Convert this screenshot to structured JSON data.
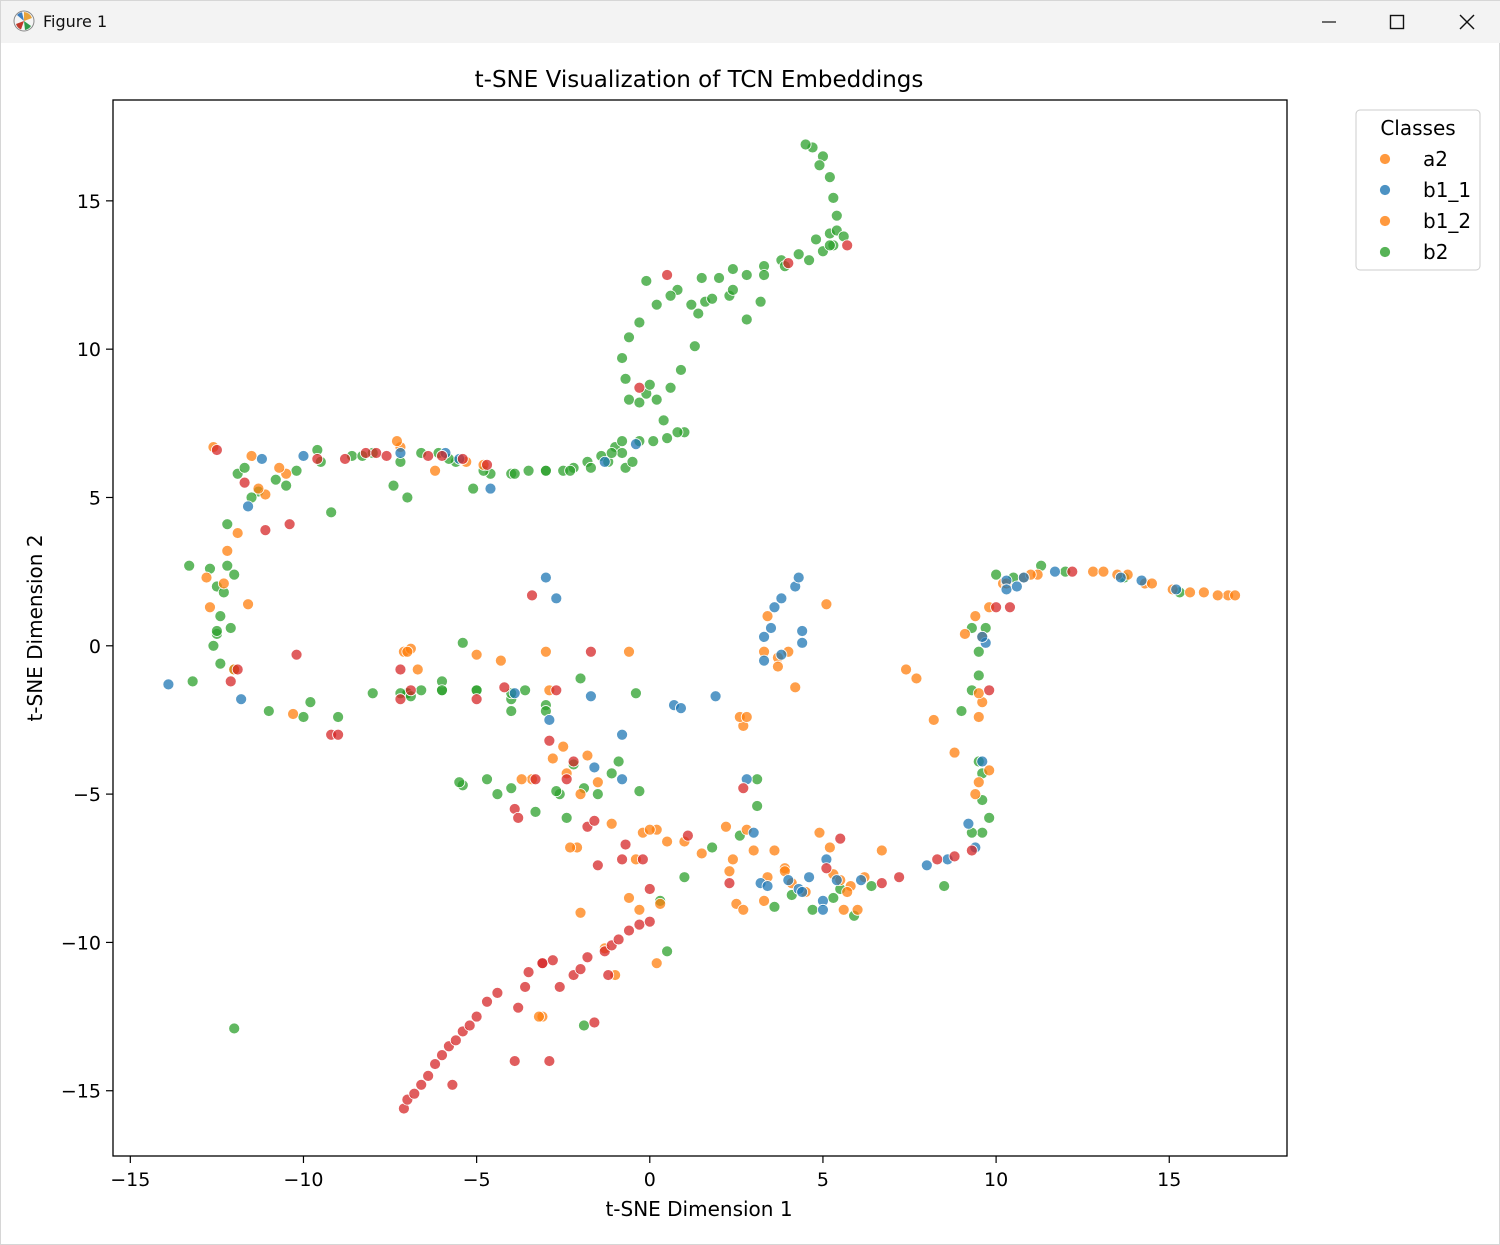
{
  "window": {
    "title": "Figure 1",
    "icons": {
      "app": "matplotlib-icon",
      "minimize": "minimize-icon",
      "maximize": "maximize-icon",
      "close": "close-icon"
    }
  },
  "chart_data": {
    "type": "scatter",
    "title": "t-SNE Visualization of TCN Embeddings",
    "xlabel": "t-SNE Dimension 1",
    "ylabel": "t-SNE Dimension 2",
    "xlim": [
      -15.5,
      18.4
    ],
    "ylim": [
      -17.2,
      18.4
    ],
    "xticks": [
      -15,
      -10,
      -5,
      0,
      5,
      10,
      15
    ],
    "xtick_labels": [
      "−15",
      "−10",
      "−5",
      "0",
      "5",
      "10",
      "15"
    ],
    "yticks": [
      -15,
      -10,
      -5,
      0,
      5,
      10,
      15
    ],
    "ytick_labels": [
      "−15",
      "−10",
      "−5",
      "0",
      "5",
      "10",
      "15"
    ],
    "grid": false,
    "legend": {
      "title": "Classes",
      "placement": "outside-top-right"
    },
    "series": [
      {
        "name": "a2",
        "color": "#ff7f0e",
        "x": [
          -12.8,
          -12.2,
          -11.6,
          -11.1,
          -10.5,
          -7.2,
          -7.1,
          -6.9,
          -6.7,
          -5.3,
          -4.3,
          -3.4,
          -2.8,
          -2.1,
          -1.8,
          -1.1,
          -0.3,
          0.3,
          1.0,
          1.5,
          2.2,
          2.7,
          3.0,
          3.4,
          3.9,
          4.1,
          4.9,
          5.3,
          5.6,
          6.2,
          6.7,
          7.4,
          7.7,
          8.2,
          8.8,
          9.1,
          9.6,
          10.2,
          11.2,
          12.8,
          13.5,
          14.3,
          15.1,
          16.0,
          16.7,
          9.5,
          9.4,
          9.6,
          3.7,
          4.0,
          -0.6,
          -2.4,
          0.2,
          2.5,
          5.1,
          -12.0,
          -11.5,
          10.8,
          2.6,
          -3.1
        ],
        "y": [
          2.3,
          3.2,
          1.4,
          5.1,
          5.8,
          6.7,
          -0.2,
          -0.1,
          -0.8,
          6.2,
          -0.5,
          -4.5,
          -3.8,
          -6.8,
          -3.7,
          -6.0,
          -8.9,
          -8.7,
          -6.6,
          -7.0,
          -6.1,
          -2.7,
          -6.9,
          -7.8,
          -7.5,
          -8.0,
          -6.3,
          -7.7,
          -8.9,
          -7.8,
          -6.9,
          -0.8,
          -1.1,
          -2.5,
          -3.6,
          0.4,
          0.3,
          2.1,
          2.4,
          2.5,
          2.4,
          2.1,
          1.9,
          1.8,
          1.7,
          -4.6,
          -5.0,
          -1.9,
          -0.4,
          -0.2,
          -0.2,
          -4.3,
          -6.2,
          -8.7,
          1.4,
          -0.8,
          6.4,
          2.3,
          -2.4,
          -12.5
        ]
      },
      {
        "name": "b1_1",
        "color": "#1f77b4",
        "x": [
          -13.9,
          -11.8,
          -11.6,
          -11.2,
          -10.0,
          -7.2,
          -5.5,
          -4.6,
          -3.9,
          -3.0,
          -2.9,
          -2.7,
          -1.7,
          -1.6,
          -0.8,
          -0.8,
          0.7,
          0.9,
          1.9,
          3.0,
          3.2,
          3.4,
          4.0,
          4.3,
          4.4,
          4.2,
          4.3,
          3.8,
          3.6,
          3.3,
          3.3,
          3.8,
          3.5,
          4.4,
          5.0,
          5.1,
          5.4,
          6.1,
          8.0,
          8.6,
          9.2,
          9.4,
          9.6,
          10.3,
          10.8,
          11.7,
          13.6,
          14.2,
          15.2,
          -5.9,
          -1.3,
          -0.4,
          2.8,
          4.6,
          9.7,
          10.3,
          10.6,
          5.0,
          4.4,
          9.6
        ],
        "y": [
          -1.3,
          -1.8,
          4.7,
          6.3,
          6.4,
          6.5,
          6.3,
          5.3,
          -1.6,
          2.3,
          -2.5,
          1.6,
          -1.7,
          -4.1,
          -3.0,
          -4.5,
          -2.0,
          -2.1,
          -1.7,
          -6.3,
          -8.0,
          -8.1,
          -7.9,
          -8.2,
          0.1,
          2.0,
          2.3,
          -0.3,
          1.3,
          -0.5,
          0.3,
          1.6,
          0.6,
          -8.3,
          -8.6,
          -7.2,
          -7.9,
          -7.9,
          -7.4,
          -7.2,
          -6.0,
          -6.8,
          -3.9,
          2.2,
          2.3,
          2.5,
          2.3,
          2.2,
          1.9,
          6.5,
          6.2,
          6.8,
          -4.5,
          -7.8,
          0.1,
          1.9,
          2.0,
          -8.9,
          0.5,
          0.3
        ]
      },
      {
        "name": "b1_2",
        "color": "#ff7f0e",
        "x": [
          -12.6,
          -12.3,
          -11.9,
          -11.3,
          -10.7,
          -10.3,
          -7.3,
          -7.0,
          -5.0,
          -4.8,
          -3.7,
          -3.2,
          -2.5,
          -2.3,
          -2.0,
          -1.5,
          -1.3,
          -1.0,
          -0.4,
          -0.2,
          0.5,
          2.3,
          2.4,
          2.7,
          2.8,
          3.3,
          3.6,
          3.9,
          4.5,
          5.5,
          6.0,
          9.4,
          9.8,
          10.3,
          11.0,
          13.1,
          13.8,
          14.5,
          15.6,
          16.4,
          16.9,
          9.5,
          9.5,
          9.8,
          0.0,
          -0.6,
          -2.9,
          3.4,
          5.8,
          -2.0,
          -6.2,
          -12.7,
          5.2,
          5.7,
          0.2,
          2.8,
          -3.0,
          3.7,
          3.3,
          4.2
        ],
        "y": [
          6.7,
          2.1,
          3.8,
          5.3,
          6.0,
          -2.3,
          6.9,
          -0.2,
          -0.3,
          6.1,
          -4.5,
          -12.5,
          -3.4,
          -6.8,
          -5.0,
          -4.6,
          -10.2,
          -11.1,
          -7.2,
          -6.3,
          -6.6,
          -7.6,
          -7.2,
          -8.9,
          -6.2,
          -8.6,
          -6.9,
          -7.6,
          -8.3,
          -7.9,
          -8.9,
          1.0,
          1.3,
          2.1,
          2.4,
          2.5,
          2.4,
          2.1,
          1.8,
          1.7,
          1.7,
          -1.6,
          -2.4,
          -4.2,
          -6.2,
          -8.5,
          -1.5,
          1.0,
          -8.1,
          -9.0,
          5.9,
          1.3,
          -6.8,
          -8.3,
          -10.7,
          -2.4,
          -0.2,
          -0.7,
          -0.2,
          -1.4
        ]
      },
      {
        "name": "b2",
        "color": "#2ca02c",
        "x": [
          -13.3,
          -12.7,
          -12.5,
          -12.3,
          -12.4,
          -12.1,
          -12.0,
          -11.9,
          -12.2,
          -12.5,
          -12.6,
          -12.4,
          -12.2,
          -11.7,
          -11.3,
          -10.8,
          -10.2,
          -9.6,
          -9.2,
          -8.6,
          -8.0,
          -7.4,
          -7.0,
          -6.6,
          -6.1,
          -5.6,
          -5.1,
          -4.6,
          -4.0,
          -3.5,
          -3.0,
          -2.5,
          -2.2,
          -1.8,
          -1.4,
          -1.0,
          -0.8,
          -0.6,
          -0.3,
          -0.1,
          0.2,
          0.6,
          0.9,
          1.3,
          1.6,
          2.0,
          2.4,
          2.8,
          3.3,
          3.8,
          4.3,
          4.8,
          5.2,
          5.4,
          5.3,
          5.0,
          4.7,
          4.5,
          4.9,
          5.2,
          5.4,
          5.3,
          5.0,
          3.2,
          2.3,
          1.5,
          0.8,
          0.2,
          -0.3,
          -0.6,
          -0.8,
          -0.7,
          0.0,
          0.5,
          1.0,
          0.4,
          -0.3,
          -0.8,
          -1.2,
          -0.7,
          -0.1,
          0.6,
          1.2,
          -2.0,
          -3.0,
          -4.0,
          -5.0,
          -6.0,
          -7.0,
          -8.0,
          -9.0,
          -10.0,
          -11.0,
          -12.0,
          -12.5,
          -11.5,
          -10.5,
          -9.5,
          -8.3,
          -7.2,
          -5.8,
          -4.8,
          -3.9,
          -3.0,
          -2.3,
          -1.7,
          -1.1,
          -0.5,
          0.1,
          0.8,
          1.4,
          1.8,
          2.4,
          2.8,
          3.3,
          3.9,
          4.6,
          5.2,
          5.6,
          -1.1,
          -1.9,
          -2.6,
          -3.3,
          -4.0,
          -4.7,
          -5.4,
          -6.0,
          -6.6,
          -7.0,
          -6.0,
          -5.0,
          -4.0,
          -3.0,
          -2.2,
          -1.5,
          -0.9,
          -0.3,
          0.3,
          1.0,
          1.8,
          2.6,
          3.1,
          3.6,
          4.1,
          4.7,
          5.3,
          5.9,
          6.4,
          9.0,
          9.3,
          9.5,
          9.7,
          9.5,
          9.3,
          9.6,
          9.8,
          9.6,
          10.0,
          10.5,
          11.3,
          12.0,
          13.7,
          15.3,
          8.5,
          9.5,
          9.6,
          9.3,
          -4.4,
          -2.4,
          0.5,
          3.1,
          5.5,
          -0.4,
          -5.5,
          -9.8,
          -13.2,
          -12.0,
          -2.7,
          -1.9,
          -7.2,
          -6.9,
          -5.4,
          -4.0,
          -3.6
        ],
        "y": [
          2.7,
          2.6,
          2.0,
          1.8,
          1.0,
          0.6,
          2.4,
          5.8,
          4.1,
          0.4,
          0.0,
          -0.6,
          2.7,
          6.0,
          5.2,
          5.6,
          5.9,
          6.6,
          4.5,
          6.4,
          6.5,
          5.4,
          5.0,
          6.5,
          6.5,
          6.2,
          5.3,
          5.8,
          5.8,
          5.9,
          5.9,
          5.9,
          6.0,
          6.2,
          6.4,
          6.7,
          6.9,
          8.3,
          8.2,
          8.5,
          8.3,
          8.7,
          9.3,
          10.1,
          11.6,
          12.4,
          12.7,
          12.5,
          12.8,
          13.0,
          13.2,
          13.7,
          13.9,
          14.5,
          15.1,
          16.5,
          16.8,
          16.9,
          16.2,
          15.8,
          14.0,
          13.5,
          13.3,
          11.6,
          11.8,
          12.4,
          12.0,
          11.5,
          10.9,
          10.4,
          9.7,
          9.0,
          8.8,
          7.0,
          7.2,
          7.6,
          6.9,
          6.5,
          6.2,
          6.0,
          12.3,
          11.8,
          11.5,
          -1.1,
          -2.0,
          -1.8,
          -1.5,
          -1.5,
          -1.6,
          -1.6,
          -2.4,
          -2.4,
          -2.2,
          -0.8,
          0.5,
          5.0,
          5.4,
          6.2,
          6.4,
          6.2,
          6.3,
          5.9,
          5.8,
          5.9,
          5.9,
          6.0,
          6.5,
          6.2,
          6.9,
          7.2,
          11.2,
          11.7,
          12.0,
          11.0,
          12.5,
          12.8,
          13.0,
          13.5,
          13.8,
          -4.3,
          -4.8,
          -5.0,
          -5.6,
          -4.8,
          -4.5,
          -4.7,
          -1.2,
          -1.5,
          -1.6,
          -1.5,
          -1.5,
          -1.6,
          -2.2,
          -4.0,
          -5.0,
          -3.9,
          -4.9,
          -8.6,
          -7.8,
          -6.8,
          -6.4,
          -4.5,
          -8.8,
          -8.4,
          -8.9,
          -8.5,
          -9.1,
          -8.1,
          -2.2,
          -1.5,
          -1.0,
          0.6,
          -0.2,
          0.6,
          -6.3,
          -5.8,
          -4.3,
          2.4,
          2.3,
          2.7,
          2.5,
          2.3,
          1.8,
          -8.1,
          -3.9,
          -5.2,
          -6.3,
          -5.0,
          -5.8,
          -10.3,
          -5.4,
          -8.2,
          -1.6,
          -4.6,
          -1.9,
          -1.2,
          -12.9,
          -4.9,
          -12.8,
          -1.6,
          -1.7,
          0.1,
          -2.2,
          -1.5
        ]
      }
    ],
    "series_red": {
      "color": "#d62728",
      "x": [
        -12.5,
        -12.1,
        -11.9,
        -11.7,
        -11.1,
        -10.4,
        -10.2,
        -9.6,
        -9.2,
        -9.0,
        -8.8,
        -8.2,
        -7.9,
        -7.6,
        -7.2,
        -7.2,
        -6.9,
        -6.4,
        -6.0,
        -5.4,
        -5.0,
        -4.7,
        -4.2,
        -3.9,
        -3.8,
        -3.4,
        -3.3,
        -3.1,
        -2.9,
        -2.7,
        -2.4,
        -2.2,
        -1.8,
        -1.6,
        -1.5,
        -1.2,
        -0.8,
        -0.7,
        -0.3,
        -0.2,
        0.0,
        0.5,
        1.1,
        2.3,
        2.7,
        4.0,
        5.1,
        5.5,
        5.7,
        6.7,
        7.2,
        8.3,
        8.8,
        9.3,
        10.0,
        10.4,
        12.2,
        9.8,
        -7.1,
        -7.0,
        -6.8,
        -6.6,
        -6.4,
        -6.2,
        -6.0,
        -5.8,
        -5.6,
        -5.4,
        -5.2,
        -5.0,
        -4.7,
        -4.4,
        -3.8,
        -3.6,
        -3.5,
        -3.1,
        -2.8,
        -2.6,
        -2.2,
        -2.0,
        -1.8,
        -1.6,
        -1.3,
        -1.1,
        -0.9,
        -0.6,
        -0.3,
        0.0,
        -5.7,
        -3.9,
        -2.9,
        -1.7
      ],
      "y": [
        6.6,
        -1.2,
        -0.8,
        5.5,
        3.9,
        4.1,
        -0.3,
        6.3,
        -3.0,
        -3.0,
        6.3,
        6.5,
        6.5,
        6.4,
        -0.8,
        -1.8,
        -1.5,
        6.4,
        6.4,
        6.3,
        -1.8,
        6.1,
        -1.4,
        -5.5,
        -5.8,
        1.7,
        -4.5,
        -10.7,
        -3.2,
        -1.5,
        -4.5,
        -3.9,
        -6.1,
        -5.9,
        -7.4,
        -11.1,
        -7.2,
        -6.7,
        8.7,
        -7.2,
        -8.2,
        12.5,
        -6.4,
        -8.0,
        -4.8,
        12.9,
        -7.5,
        -6.5,
        13.5,
        -8.0,
        -7.8,
        -7.2,
        -7.1,
        -6.9,
        1.3,
        1.3,
        2.5,
        -1.5,
        -15.6,
        -15.3,
        -15.1,
        -14.8,
        -14.5,
        -14.1,
        -13.8,
        -13.5,
        -13.3,
        -13.0,
        -12.8,
        -12.5,
        -12.0,
        -11.7,
        -12.2,
        -11.5,
        -11.0,
        -10.7,
        -10.6,
        -11.5,
        -11.1,
        -10.9,
        -10.5,
        -12.7,
        -10.3,
        -10.1,
        -9.9,
        -9.6,
        -9.4,
        -9.3,
        -14.8,
        -14.0,
        -14.0,
        -0.2
      ]
    }
  }
}
